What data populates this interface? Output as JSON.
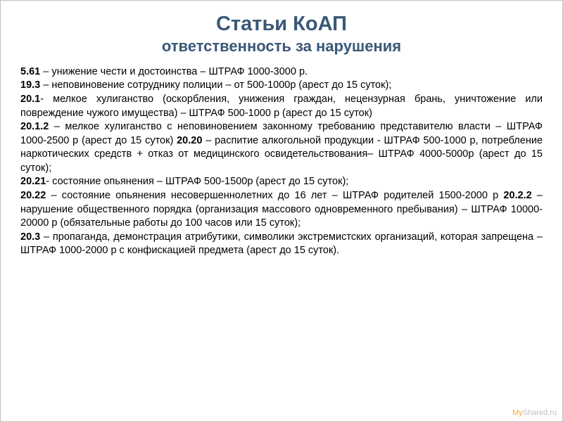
{
  "title": "Статьи КоАП",
  "subtitle": "ответственность за нарушения",
  "items": [
    {
      "code": "5.61",
      "text": " – унижение чести и достоинства – ШТРАФ 1000-3000 р."
    },
    {
      "code": "19.3",
      "text": " – неповиновение сотруднику полиции – от 500-1000р (арест до 15 суток);"
    },
    {
      "code": "20.1",
      "text": "- мелкое хулиганство (оскорбления, унижения граждан, нецензурная брань, уничтожение или повреждение чужого имущества) – ШТРАФ 500-1000 р (арест до 15 суток)"
    },
    {
      "code": "20.1.2",
      "text": " – мелкое хулиганство с неповиновением законному требованию представителю власти – ШТРАФ 1000-2500 р (арест до 15 суток) ",
      "code2": "20.20",
      "text2": " – распитие алкогольной продукции - ШТРАФ 500-1000 р, потребление наркотических средств + отказ от медицинского освидетельствования– ШТРАФ 4000-5000р (арест до 15 суток);"
    },
    {
      "code": "20.21",
      "text": "- состояние опьянения – ШТРАФ 500-1500р (арест до 15 суток);"
    },
    {
      "code": "20.22",
      "text": " – состояние опьянения несовершеннолетних до 16 лет – ШТРАФ родителей 1500-2000 р ",
      "code2": "20.2.2",
      "text2": " – нарушение общественного порядка (организация массового одновременного пребывания) – ШТРАФ 10000-20000 р (обязательные работы до 100 часов или 15 суток);"
    },
    {
      "code": "20.3",
      "text": " – пропаганда, демонстрация атрибутики, символики экстремистских организаций, которая запрещена – ШТРАФ 1000-2000 р с конфискацией предмета (арест до 15 суток)."
    }
  ],
  "watermark_prefix": "My",
  "watermark_suffix": "Shared.ru",
  "colors": {
    "title": "#3a5877",
    "text": "#000000",
    "background": "#ffffff",
    "watermark": "#c0c0c0",
    "watermark_accent": "#f0b030"
  }
}
